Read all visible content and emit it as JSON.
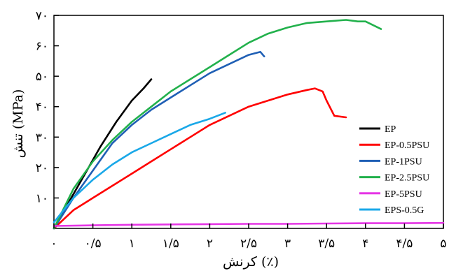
{
  "chart_data": {
    "type": "line",
    "xlabel": "کرنش (٪)",
    "ylabel": "تنش (MPa)",
    "xlim": [
      0,
      5
    ],
    "ylim": [
      0,
      70
    ],
    "xticks": [
      0,
      0.5,
      1,
      1.5,
      2,
      2.5,
      3,
      3.5,
      4,
      4.5,
      5
    ],
    "xtick_labels": [
      "۰",
      "۰/۵",
      "۱",
      "۱/۵",
      "۲",
      "۲/۵",
      "۳",
      "۳/۵",
      "۴",
      "۴/۵",
      "۵"
    ],
    "yticks": [
      10,
      20,
      30,
      40,
      50,
      60,
      70
    ],
    "ytick_labels": [
      "۱۰",
      "۲۰",
      "۳۰",
      "۴۰",
      "۵۰",
      "۶۰",
      "۷۰"
    ],
    "grid": false,
    "legend_position": "right",
    "series": [
      {
        "name": "EP",
        "color": "#000000",
        "x": [
          0,
          0.2,
          0.4,
          0.6,
          0.8,
          1.0,
          1.15,
          1.25
        ],
        "y": [
          0,
          9,
          18,
          27,
          35,
          42,
          46,
          49
        ]
      },
      {
        "name": "EP-0.5PSU",
        "color": "#ff0000",
        "x": [
          0,
          0.25,
          0.5,
          0.75,
          1.0,
          1.25,
          1.5,
          1.75,
          2.0,
          2.25,
          2.5,
          2.75,
          3.0,
          3.25,
          3.35,
          3.45,
          3.5,
          3.6,
          3.75
        ],
        "y": [
          0,
          6,
          10,
          14,
          18,
          22,
          26,
          30,
          34,
          37,
          40,
          42,
          44,
          45.5,
          46,
          45,
          42,
          37,
          36.5
        ]
      },
      {
        "name": "EP-1PSU",
        "color": "#1f5fb5",
        "x": [
          0,
          0.25,
          0.5,
          0.75,
          1.0,
          1.25,
          1.5,
          1.75,
          2.0,
          2.25,
          2.5,
          2.65,
          2.7
        ],
        "y": [
          0,
          10,
          19,
          28,
          34,
          39,
          43,
          47,
          51,
          54,
          57,
          58,
          56.5
        ]
      },
      {
        "name": "EP-2.5PSU",
        "color": "#22b14c",
        "x": [
          0,
          0.25,
          0.5,
          0.75,
          1.0,
          1.25,
          1.5,
          1.75,
          2.0,
          2.25,
          2.5,
          2.75,
          3.0,
          3.25,
          3.5,
          3.75,
          3.9,
          4.0,
          4.2
        ],
        "y": [
          0,
          13,
          22,
          29,
          35,
          40,
          45,
          49,
          53,
          57,
          61,
          64,
          66,
          67.5,
          68,
          68.5,
          68,
          68,
          65.5
        ]
      },
      {
        "name": "EP-5PSU",
        "color": "#e535e5",
        "x": [
          0,
          0.5,
          1.0,
          1.5,
          2.0,
          2.5,
          3.0,
          3.5,
          4.0,
          4.5,
          5.0
        ],
        "y": [
          0.8,
          1.0,
          1.2,
          1.3,
          1.4,
          1.5,
          1.5,
          1.6,
          1.7,
          1.7,
          1.8
        ]
      },
      {
        "name": "EPS-0.5G",
        "color": "#1aa8e8",
        "x": [
          0,
          0.25,
          0.5,
          0.75,
          1.0,
          1.25,
          1.5,
          1.75,
          2.0,
          2.2
        ],
        "y": [
          2,
          10,
          16,
          21,
          25,
          28,
          31,
          34,
          36,
          38
        ]
      }
    ]
  }
}
